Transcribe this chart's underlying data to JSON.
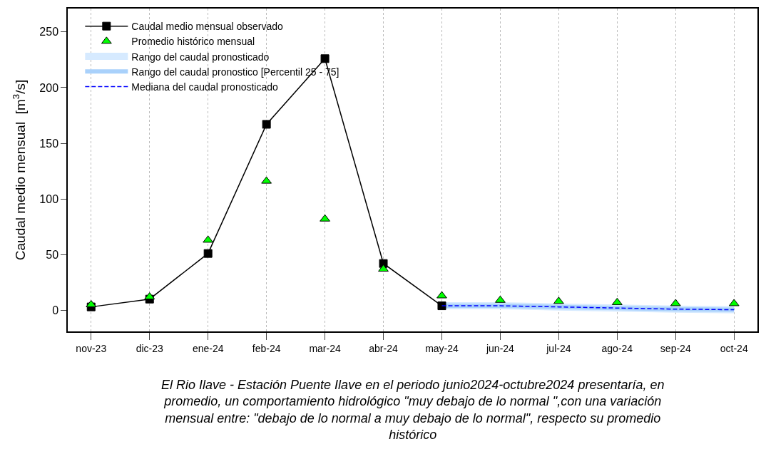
{
  "chart_data": {
    "type": "line",
    "ylabel": "Caudal medio mensual  [m$^{3}$/s]",
    "categories": [
      "nov-23",
      "dic-23",
      "ene-24",
      "feb-24",
      "mar-24",
      "abr-24",
      "may-24",
      "jun-24",
      "jul-24",
      "ago-24",
      "sep-24",
      "oct-24"
    ],
    "series": [
      {
        "name": "Caudal medio mensual observado",
        "type": "line",
        "color": "#000000",
        "marker": "square",
        "line_style": "solid",
        "values": [
          3,
          10,
          51,
          167,
          226,
          42,
          4,
          null,
          null,
          null,
          null,
          null
        ]
      },
      {
        "name": "Promedio histórico mensual",
        "type": "scatter",
        "color": "#00ff00",
        "marker": "triangle",
        "values": [
          5,
          12,
          63,
          116,
          82,
          37,
          13,
          9,
          8,
          7,
          6,
          6
        ]
      },
      {
        "name": "Rango del caudal pronosticado",
        "type": "line",
        "color": "#d6eaff",
        "values": [
          null,
          null,
          null,
          null,
          null,
          null,
          4,
          4,
          3,
          2,
          1,
          0.5
        ]
      },
      {
        "name": "Rango del caudal pronostico [Percentil 25 - 75]",
        "type": "line",
        "color": "#a9d1fb",
        "values": [
          null,
          null,
          null,
          null,
          null,
          null,
          4,
          4,
          3,
          2,
          1,
          0.5
        ]
      },
      {
        "name": "Mediana del caudal pronosticado",
        "color": "#0000ff",
        "marker": "none",
        "line_style": "dashed",
        "values": [
          null,
          null,
          null,
          null,
          null,
          null,
          4,
          4,
          3,
          2,
          1,
          0.5
        ]
      }
    ],
    "ylim": [
      -19,
      271
    ],
    "yticks": [
      0,
      50,
      100,
      150,
      200,
      250
    ],
    "grid": "x",
    "legend": "top left",
    "annotations": [
      "El Rio Ilave - Estación Puente Ilave en el periodo junio2024-octubre2024 presentaría, en promedio, un comportamiento hidrológico \"muy debajo de lo normal \",con una variación mensual entre: \"debajo de lo normal a muy debajo de lo normal\", respecto su promedio histórico"
    ]
  }
}
